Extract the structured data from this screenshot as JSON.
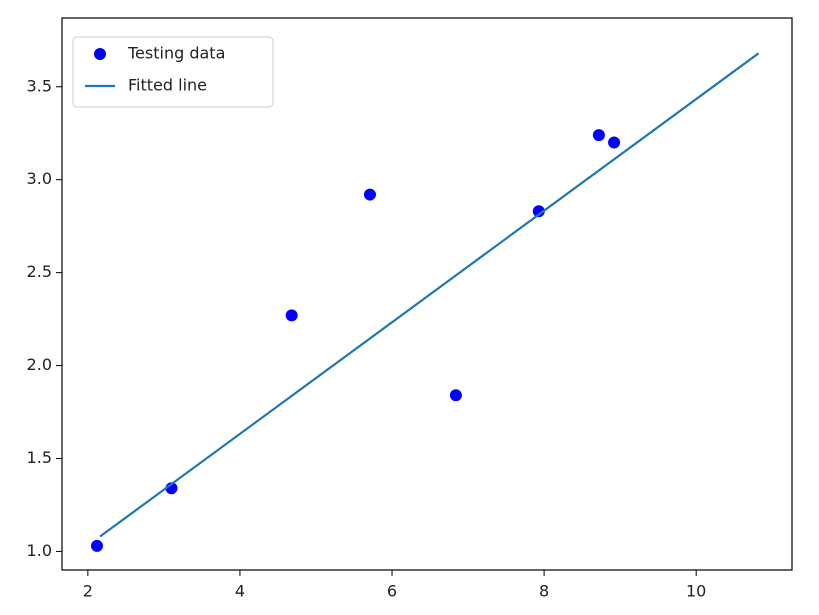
{
  "chart_data": {
    "type": "scatter",
    "series": [
      {
        "name": "Testing data",
        "type": "scatter",
        "color": "#0000ff",
        "x": [
          2.12,
          3.1,
          4.68,
          5.71,
          6.84,
          7.93,
          8.72,
          8.92
        ],
        "values": [
          1.03,
          1.34,
          2.27,
          2.92,
          1.84,
          2.83,
          3.24,
          3.2
        ]
      },
      {
        "name": "Fitted line",
        "type": "line",
        "color": "#1f77b4",
        "x": [
          2.16,
          10.82
        ],
        "values": [
          1.08,
          3.68
        ]
      }
    ],
    "xlim": [
      1.66,
      11.26
    ],
    "ylim": [
      0.9,
      3.87
    ],
    "xticks": [
      2,
      4,
      6,
      8,
      10
    ],
    "yticks": [
      {
        "value": 1,
        "label": "1.0"
      },
      1.5,
      {
        "value": 2,
        "label": "2.0"
      },
      2.5,
      {
        "value": 3,
        "label": "3.0"
      },
      3.5
    ],
    "legend": "upper left"
  }
}
